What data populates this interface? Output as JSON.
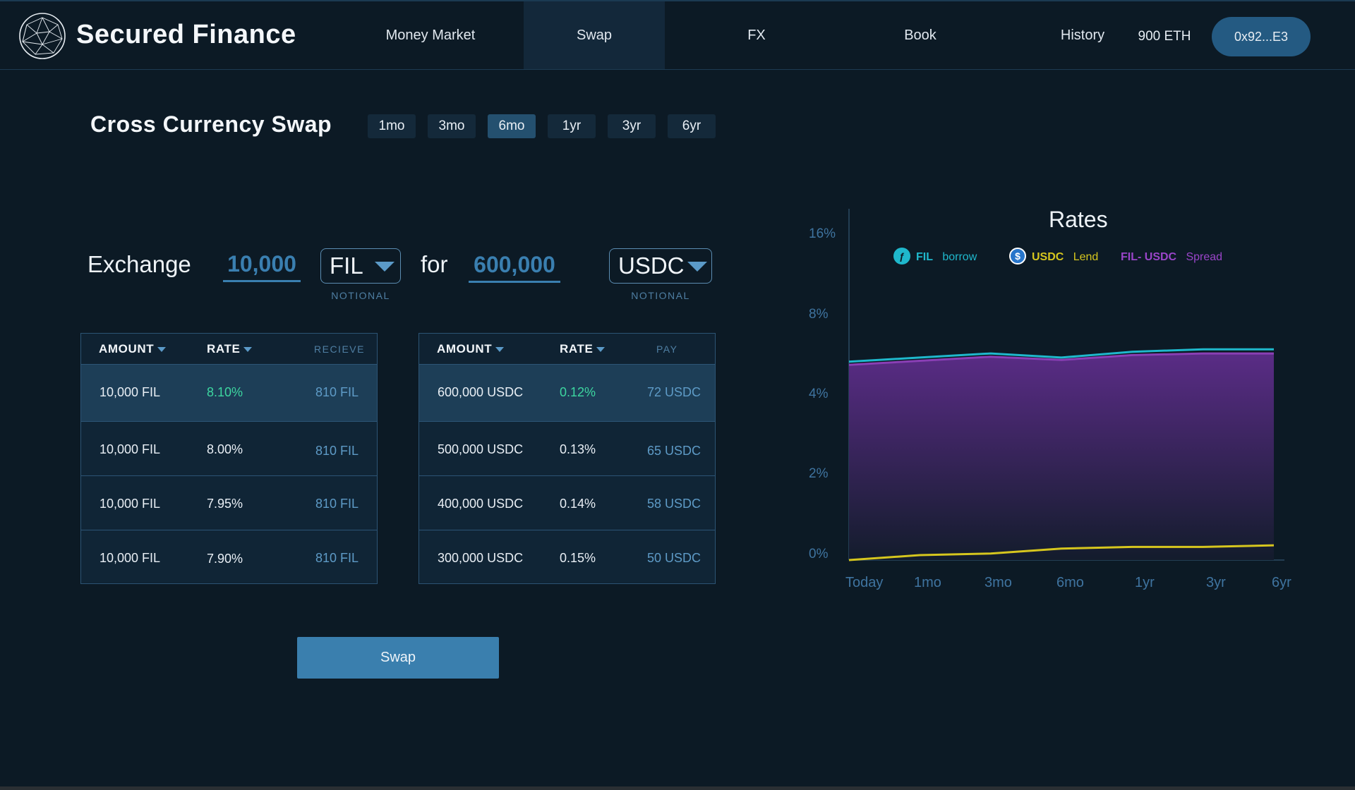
{
  "header": {
    "brand": "Secured Finance",
    "nav": [
      {
        "label": "Money Market",
        "active": false
      },
      {
        "label": "Swap",
        "active": true
      },
      {
        "label": "FX",
        "active": false
      },
      {
        "label": "Book",
        "active": false
      },
      {
        "label": "History",
        "active": false
      }
    ],
    "balance": "900 ETH",
    "wallet": "0x92...E3"
  },
  "title": "Cross Currency Swap",
  "terms": [
    {
      "label": "1mo",
      "active": false
    },
    {
      "label": "3mo",
      "active": false
    },
    {
      "label": "6mo",
      "active": true
    },
    {
      "label": "1yr",
      "active": false
    },
    {
      "label": "3yr",
      "active": false
    },
    {
      "label": "6yr",
      "active": false
    }
  ],
  "exchange": {
    "label": "Exchange",
    "amount": "10,000",
    "currency": "FIL",
    "notional": "NOTIONAL",
    "for_label": "for",
    "for_amount": "600,000",
    "for_currency": "USDC",
    "for_notional": "NOTIONAL"
  },
  "receive_table": {
    "headers": {
      "amount": "AMOUNT",
      "rate": "RATE",
      "extra": "RECIEVE"
    },
    "rows": [
      {
        "amount": "10,000 FIL",
        "rate": "8.10%",
        "value": "810 FIL",
        "highlight": true
      },
      {
        "amount": "10,000 FIL",
        "rate": "8.00%",
        "value": "810 FIL",
        "highlight": false
      },
      {
        "amount": "10,000 FIL",
        "rate": "7.95%",
        "value": "810 FIL",
        "highlight": false
      },
      {
        "amount": "10,000 FIL",
        "rate": "7.90%",
        "value": "810 FIL",
        "highlight": false
      }
    ]
  },
  "pay_table": {
    "headers": {
      "amount": "AMOUNT",
      "rate": "RATE",
      "extra": "PAY"
    },
    "rows": [
      {
        "amount": "600,000 USDC",
        "rate": "0.12%",
        "value": "72 USDC",
        "highlight": true
      },
      {
        "amount": "500,000 USDC",
        "rate": "0.13%",
        "value": "65 USDC",
        "highlight": false
      },
      {
        "amount": "400,000 USDC",
        "rate": "0.14%",
        "value": "58 USDC",
        "highlight": false
      },
      {
        "amount": "300,000 USDC",
        "rate": "0.15%",
        "value": "50 USDC",
        "highlight": false
      }
    ]
  },
  "swap_button": "Swap",
  "colors": {
    "fil": "#1fb8cc",
    "usdc": "#d6c61e",
    "spread": "#8a3fb5",
    "accent": "#3a7fae"
  },
  "chart_data": {
    "type": "line",
    "title": "Rates",
    "x": [
      "Today",
      "1mo",
      "3mo",
      "6mo",
      "1yr",
      "3yr",
      "6yr"
    ],
    "y_ticks": [
      "16%",
      "8%",
      "4%",
      "2%",
      "0%"
    ],
    "legend_placement": "top",
    "grid": false,
    "series": [
      {
        "name": "FIL",
        "suffix": "borrow",
        "color": "#1fb8cc",
        "icon": "filecoin-icon",
        "values": [
          8.2,
          8.7,
          9.2,
          8.7,
          9.4,
          9.7,
          9.7
        ]
      },
      {
        "name": "USDC",
        "suffix": "Lend",
        "color": "#d6c61e",
        "icon": "usdc-icon",
        "values": [
          0.0,
          0.15,
          0.2,
          0.35,
          0.4,
          0.4,
          0.45
        ]
      },
      {
        "name": "FIL- USDC",
        "suffix": "Spread",
        "color": "#8a3fb5",
        "values": [
          7.9,
          8.3,
          8.8,
          8.4,
          9.0,
          9.2,
          9.2
        ]
      }
    ]
  }
}
